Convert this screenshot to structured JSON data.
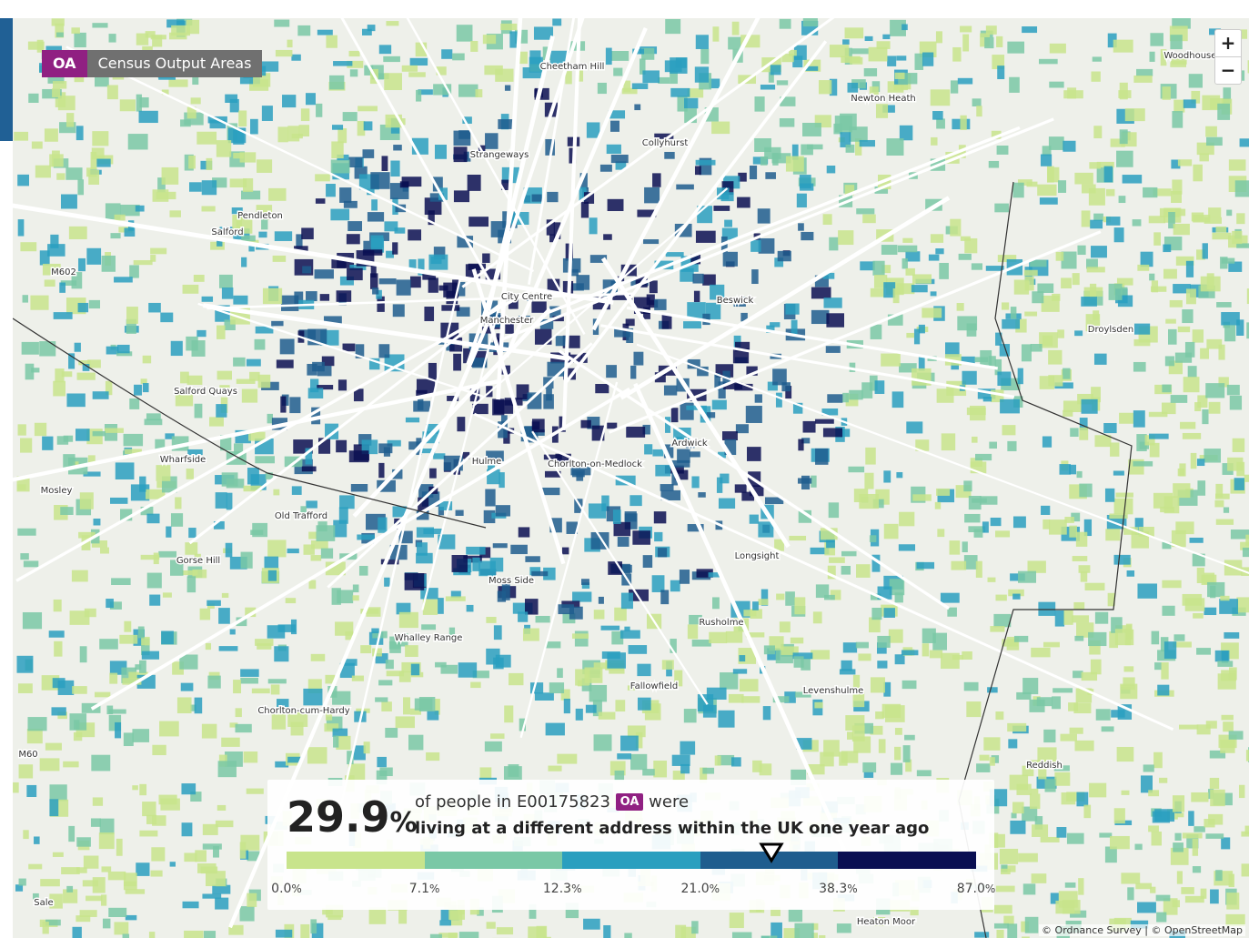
{
  "badge": {
    "code": "OA",
    "label": "Census Output Areas"
  },
  "zoom": {
    "in": "+",
    "out": "−"
  },
  "places": [
    "Cheetham Hill",
    "Newton Heath",
    "Woodhouses",
    "Collyhurst",
    "Strangeways",
    "Pendleton",
    "Salford",
    "City Centre",
    "Manchester",
    "Beswick",
    "Droylsden",
    "Salford Quays",
    "Ardwick",
    "Wharfside",
    "Hulme",
    "Chorlton-on-Medlock",
    "Mosley",
    "Old Trafford",
    "Longsight",
    "Gorse Hill",
    "Moss Side",
    "Rusholme",
    "Whalley Range",
    "Fallowfield",
    "Levenshulme",
    "Chorlton-cum-Hardy",
    "Reddish",
    "Heaton Moor",
    "Sale",
    "M60",
    "M602"
  ],
  "legend": {
    "value": 29.9,
    "unit": "%",
    "text_before": "of people in E00175823",
    "area_code": "OA",
    "text_after": "were",
    "description": "living at a different address within the UK one year ago",
    "breaks": [
      {
        "value": 0,
        "label": "0.0"
      },
      7.1,
      12.3,
      {
        "value": 21,
        "label": "21.0"
      },
      38.3,
      {
        "value": 87,
        "label": "87.0"
      }
    ],
    "colors": [
      "#c8e48c",
      "#7ac8a6",
      "#2a9fbf",
      "#1f5d8e",
      "#0a0f52"
    ]
  },
  "attribution": "© Ordnance Survey | © OpenStreetMap"
}
